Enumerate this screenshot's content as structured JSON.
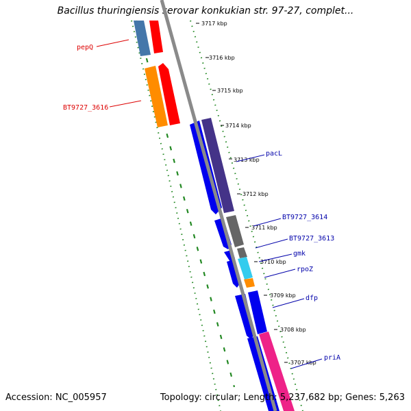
{
  "title": "Bacillus thuringiensis serovar konkukian str. 97-27, complet...",
  "footer": {
    "accession": "Accession: NC_005957",
    "stats": "Topology: circular; Length: 5,237,682 bp; Genes: 5,263"
  },
  "tick_labels": [
    "3717 kbp",
    "3716 kbp",
    "3715 kbp",
    "3714 kbp",
    "3713 kbp",
    "3712 kbp",
    "3711 kbp",
    "3710 kbp",
    "3709 kbp",
    "3708 kbp",
    "3707 kbp"
  ],
  "gene_labels": [
    {
      "name": "pepQ",
      "color": "#dd0000"
    },
    {
      "name": "BT9727_3616",
      "color": "#dd0000"
    },
    {
      "name": "pacL",
      "color": "#0000aa"
    },
    {
      "name": "BT9727_3614",
      "color": "#0000aa"
    },
    {
      "name": "BT9727_3613",
      "color": "#0000aa"
    },
    {
      "name": "gmk",
      "color": "#0000aa"
    },
    {
      "name": "rpoZ",
      "color": "#0000aa"
    },
    {
      "name": "dfp",
      "color": "#0000aa"
    },
    {
      "name": "priA",
      "color": "#0000aa"
    }
  ],
  "colors": {
    "backbone": "#888888",
    "track_border": "#228822",
    "forward_strand": "#dd0000",
    "reverse_strand": "#0000ee",
    "cog_orange": "#ff8c00",
    "cog_purple": "#443388",
    "cog_gray": "#666666",
    "cog_cyan": "#33ccee",
    "cog_pink": "#ee2288",
    "cog_blue": "#4477aa"
  }
}
